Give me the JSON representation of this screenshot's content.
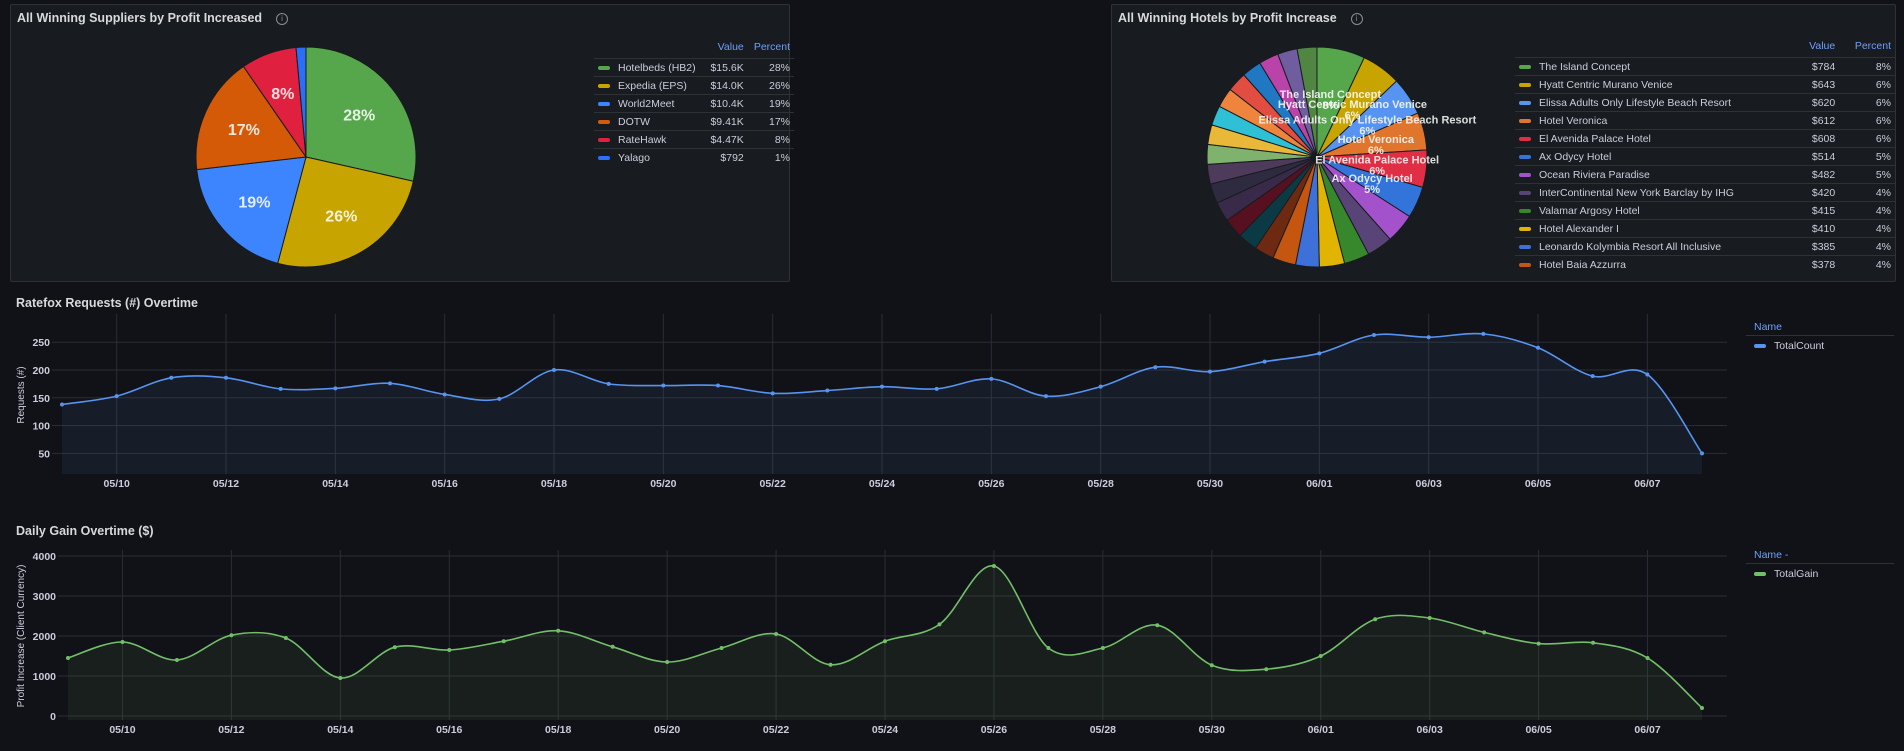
{
  "suppliers_panel": {
    "title": "All Winning Suppliers by Profit Increased",
    "info_icon": "info-icon",
    "legend_headers": {
      "value": "Value",
      "percent": "Percent"
    },
    "chart_data": {
      "type": "pie",
      "title": "",
      "slices": [
        {
          "name": "Hotelbeds (HB2)",
          "value": 15600,
          "value_label": "$15.6K",
          "percent": "28%",
          "color": "#56a64b"
        },
        {
          "name": "Expedia (EPS)",
          "value": 14000,
          "value_label": "$14.0K",
          "percent": "26%",
          "color": "#c8a400"
        },
        {
          "name": "World2Meet",
          "value": 10400,
          "value_label": "$10.4K",
          "percent": "19%",
          "color": "#3d85ff"
        },
        {
          "name": "DOTW",
          "value": 9410,
          "value_label": "$9.41K",
          "percent": "17%",
          "color": "#d45a07"
        },
        {
          "name": "RateHawk",
          "value": 4470,
          "value_label": "$4.47K",
          "percent": "8%",
          "color": "#e0203f"
        },
        {
          "name": "Yalago",
          "value": 792,
          "value_label": "$792",
          "percent": "1%",
          "color": "#2a6ff5"
        }
      ]
    }
  },
  "hotels_panel": {
    "title": "All Winning Hotels by Profit Increase",
    "info_icon": "info-icon",
    "legend_headers": {
      "value": "Value",
      "percent": "Percent"
    },
    "chart_data": {
      "type": "pie",
      "title": "",
      "slices": [
        {
          "name": "The Island Concept",
          "value": 784,
          "value_label": "$784",
          "percent": "8%",
          "color": "#56a64b"
        },
        {
          "name": "Hyatt Centric Murano Venice",
          "value": 643,
          "value_label": "$643",
          "percent": "6%",
          "color": "#c8a400"
        },
        {
          "name": "Elissa Adults Only Lifestyle Beach Resort",
          "value": 620,
          "value_label": "$620",
          "percent": "6%",
          "color": "#5794f2"
        },
        {
          "name": "Hotel Veronica",
          "value": 612,
          "value_label": "$612",
          "percent": "6%",
          "color": "#e0752d"
        },
        {
          "name": "El Avenida Palace Hotel",
          "value": 608,
          "value_label": "$608",
          "percent": "6%",
          "color": "#e02f44"
        },
        {
          "name": "Ax Odycy Hotel",
          "value": 514,
          "value_label": "$514",
          "percent": "5%",
          "color": "#3274d9"
        },
        {
          "name": "Ocean Riviera Paradise",
          "value": 482,
          "value_label": "$482",
          "percent": "5%",
          "color": "#a352cc"
        },
        {
          "name": "InterContinental New York Barclay by IHG",
          "value": 420,
          "value_label": "$420",
          "percent": "4%",
          "color": "#584477"
        },
        {
          "name": "Valamar Argosy Hotel",
          "value": 415,
          "value_label": "$415",
          "percent": "4%",
          "color": "#37872d"
        },
        {
          "name": "Hotel Alexander I",
          "value": 410,
          "value_label": "$410",
          "percent": "4%",
          "color": "#e0b400"
        },
        {
          "name": "Leonardo Kolymbia Resort All Inclusive",
          "value": 385,
          "value_label": "$385",
          "percent": "4%",
          "color": "#3d71d9"
        },
        {
          "name": "Hotel Baia Azzurra",
          "value": 378,
          "value_label": "$378",
          "percent": "4%",
          "color": "#c4560f"
        }
      ],
      "other_slice_colors": [
        "#6e2a10",
        "#0b3a45",
        "#571020",
        "#3a2a4a",
        "#2e2a40",
        "#4e3a5a",
        "#7eb26d",
        "#eab839",
        "#2fc0d6",
        "#ef843c",
        "#e24d42",
        "#1f78c1",
        "#ba43a9",
        "#705da0",
        "#508642"
      ]
    }
  },
  "requests_panel": {
    "title": "Ratefox Requests (#) Overtime",
    "legend_header": "Name",
    "chart_data": {
      "type": "area",
      "title": "Ratefox Requests (#) Overtime",
      "xlabel": "",
      "ylabel": "Requests (#)",
      "ylim": [
        20,
        290
      ],
      "yticks": [
        50,
        100,
        150,
        200,
        250
      ],
      "xticks": [
        "05/10",
        "05/12",
        "05/14",
        "05/16",
        "05/18",
        "05/20",
        "05/22",
        "05/24",
        "05/26",
        "05/28",
        "05/30",
        "06/01",
        "06/03",
        "06/05",
        "06/07"
      ],
      "x": [
        "05/09",
        "05/10",
        "05/11",
        "05/12",
        "05/13",
        "05/14",
        "05/15",
        "05/16",
        "05/17",
        "05/18",
        "05/19",
        "05/20",
        "05/21",
        "05/22",
        "05/23",
        "05/24",
        "05/25",
        "05/26",
        "05/27",
        "05/28",
        "05/29",
        "05/30",
        "05/31",
        "06/01",
        "06/02",
        "06/03",
        "06/04",
        "06/05",
        "06/06",
        "06/07",
        "06/08"
      ],
      "series": [
        {
          "name": "TotalCount",
          "color": "#5794f2",
          "values": [
            138,
            153,
            186,
            186,
            166,
            167,
            176,
            156,
            148,
            200,
            175,
            172,
            172,
            158,
            163,
            170,
            166,
            184,
            153,
            170,
            205,
            197,
            215,
            230,
            263,
            259,
            265,
            240,
            189,
            192,
            50
          ]
        }
      ]
    }
  },
  "gain_panel": {
    "title": "Daily Gain Overtime ($)",
    "legend_header": "Name -",
    "chart_data": {
      "type": "area",
      "title": "Daily Gain Overtime ($)",
      "xlabel": "",
      "ylabel": "Profit Increase (Client Currency)",
      "ylim": [
        0,
        4000
      ],
      "yticks": [
        0,
        1000,
        2000,
        3000,
        4000
      ],
      "xticks": [
        "05/10",
        "05/12",
        "05/14",
        "05/16",
        "05/18",
        "05/20",
        "05/22",
        "05/24",
        "05/26",
        "05/28",
        "05/30",
        "06/01",
        "06/03",
        "06/05",
        "06/07"
      ],
      "x": [
        "05/09",
        "05/10",
        "05/11",
        "05/12",
        "05/13",
        "05/14",
        "05/15",
        "05/16",
        "05/17",
        "05/18",
        "05/19",
        "05/20",
        "05/21",
        "05/22",
        "05/23",
        "05/24",
        "05/25",
        "05/26",
        "05/27",
        "05/28",
        "05/29",
        "05/30",
        "05/31",
        "06/01",
        "06/02",
        "06/03",
        "06/04",
        "06/05",
        "06/06",
        "06/07",
        "06/08"
      ],
      "series": [
        {
          "name": "TotalGain",
          "color": "#73bf69",
          "values": [
            1450,
            1850,
            1400,
            2020,
            1950,
            950,
            1720,
            1650,
            1870,
            2130,
            1730,
            1350,
            1700,
            2050,
            1280,
            1870,
            2290,
            3750,
            1700,
            1700,
            2270,
            1270,
            1170,
            1500,
            2420,
            2450,
            2090,
            1810,
            1830,
            1450,
            200
          ]
        }
      ]
    }
  }
}
